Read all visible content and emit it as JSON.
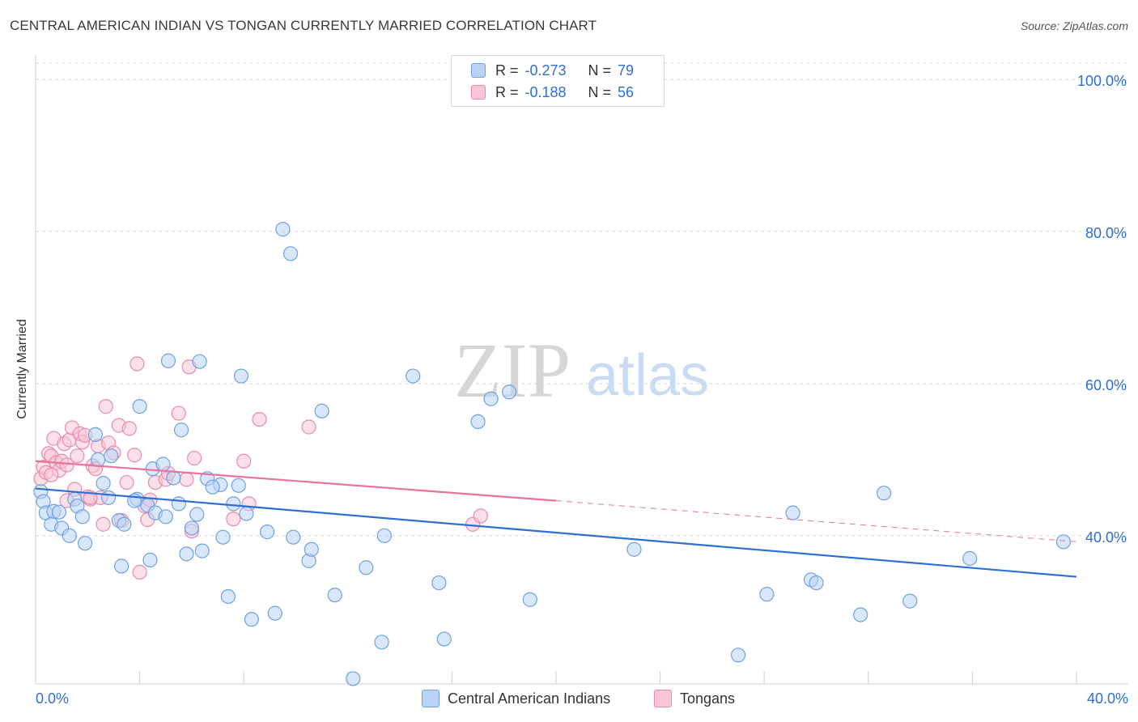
{
  "title": "CENTRAL AMERICAN INDIAN VS TONGAN CURRENTLY MARRIED CORRELATION CHART",
  "source": "Source: ZipAtlas.com",
  "watermark": {
    "zip": "ZIP",
    "atlas": "atlas"
  },
  "colors": {
    "blue": "#2e6fd1",
    "blue_fill": "#b9d3f5",
    "pink": "#e8739c",
    "pink_fill": "#f8c6d6"
  },
  "stats_legend": [
    {
      "r_label": "R =",
      "r_value": "-0.273",
      "n_label": "N =",
      "n_value": "79",
      "series": "blue"
    },
    {
      "r_label": "R =",
      "r_value": "-0.188",
      "n_label": "N =",
      "n_value": "56",
      "series": "pink"
    }
  ],
  "chart_data": {
    "type": "scatter",
    "xlabel": "",
    "ylabel": "Currently Married",
    "xlim": [
      0,
      40
    ],
    "ylim": [
      20.5,
      103
    ],
    "x_tick_labels": [
      "0.0%",
      "40.0%"
    ],
    "y_ticks": [
      40,
      60,
      80,
      100
    ],
    "y_tick_labels": [
      "40.0%",
      "60.0%",
      "80.0%",
      "100.0%"
    ],
    "x_minor_ticks": [
      0,
      4,
      8,
      12,
      16,
      20,
      24,
      28,
      32,
      36,
      40
    ],
    "series": [
      {
        "name": "Central American Indians",
        "color": "#2e6fd1",
        "trend": {
          "x": [
            0,
            40
          ],
          "y": [
            46.2,
            34.6
          ]
        },
        "points": [
          [
            0.2,
            45.8
          ],
          [
            0.3,
            44.5
          ],
          [
            0.4,
            43.0
          ],
          [
            0.6,
            41.5
          ],
          [
            0.7,
            43.2
          ],
          [
            1.0,
            41.0
          ],
          [
            1.3,
            40.0
          ],
          [
            1.5,
            44.8
          ],
          [
            1.6,
            43.9
          ],
          [
            1.8,
            42.5
          ],
          [
            1.9,
            39.0
          ],
          [
            2.3,
            53.3
          ],
          [
            2.4,
            50.0
          ],
          [
            2.6,
            46.9
          ],
          [
            2.8,
            45.0
          ],
          [
            2.9,
            50.5
          ],
          [
            3.2,
            42.0
          ],
          [
            3.4,
            41.5
          ],
          [
            3.3,
            36.0
          ],
          [
            3.9,
            44.8
          ],
          [
            4.0,
            57.0
          ],
          [
            4.3,
            44.0
          ],
          [
            4.4,
            36.8
          ],
          [
            4.5,
            48.8
          ],
          [
            4.6,
            43.0
          ],
          [
            4.9,
            49.4
          ],
          [
            5.0,
            42.5
          ],
          [
            5.1,
            63.0
          ],
          [
            5.3,
            47.6
          ],
          [
            5.5,
            44.2
          ],
          [
            5.6,
            53.9
          ],
          [
            5.8,
            37.6
          ],
          [
            6.0,
            41.0
          ],
          [
            6.2,
            42.8
          ],
          [
            6.3,
            62.9
          ],
          [
            6.4,
            38.0
          ],
          [
            6.6,
            47.5
          ],
          [
            7.1,
            46.7
          ],
          [
            7.2,
            39.8
          ],
          [
            7.4,
            32.0
          ],
          [
            7.6,
            44.2
          ],
          [
            7.8,
            46.6
          ],
          [
            7.9,
            61.0
          ],
          [
            8.1,
            42.9
          ],
          [
            8.3,
            29.0
          ],
          [
            8.9,
            40.5
          ],
          [
            9.2,
            29.8
          ],
          [
            9.5,
            80.3
          ],
          [
            9.8,
            77.1
          ],
          [
            9.9,
            39.8
          ],
          [
            10.5,
            36.7
          ],
          [
            10.6,
            38.2
          ],
          [
            11.0,
            56.4
          ],
          [
            11.5,
            32.2
          ],
          [
            12.2,
            21.2
          ],
          [
            12.7,
            35.8
          ],
          [
            13.3,
            26.0
          ],
          [
            13.4,
            40.0
          ],
          [
            14.5,
            61.0
          ],
          [
            15.5,
            33.8
          ],
          [
            15.7,
            26.4
          ],
          [
            17.0,
            55.0
          ],
          [
            17.5,
            58.0
          ],
          [
            18.2,
            58.9
          ],
          [
            19.0,
            31.6
          ],
          [
            23.0,
            38.2
          ],
          [
            27.0,
            24.3
          ],
          [
            28.1,
            32.3
          ],
          [
            29.1,
            43.0
          ],
          [
            29.8,
            34.2
          ],
          [
            30.0,
            33.8
          ],
          [
            31.7,
            29.6
          ],
          [
            32.6,
            45.6
          ],
          [
            33.6,
            31.4
          ],
          [
            35.9,
            37.0
          ],
          [
            39.5,
            39.2
          ],
          [
            0.9,
            43.1
          ],
          [
            6.8,
            46.4
          ],
          [
            3.8,
            44.6
          ]
        ]
      },
      {
        "name": "Tongans",
        "color": "#e8739c",
        "trend": {
          "x": [
            0,
            20
          ],
          "y": [
            49.8,
            44.6
          ]
        },
        "trend_ext": {
          "x": [
            20,
            40
          ],
          "y": [
            44.6,
            39.2
          ]
        },
        "points": [
          [
            0.2,
            47.5
          ],
          [
            0.3,
            49.0
          ],
          [
            0.4,
            48.3
          ],
          [
            0.5,
            50.8
          ],
          [
            0.6,
            50.5
          ],
          [
            0.7,
            52.8
          ],
          [
            0.8,
            49.6
          ],
          [
            0.9,
            48.6
          ],
          [
            1.0,
            49.8
          ],
          [
            1.1,
            52.1
          ],
          [
            1.2,
            44.6
          ],
          [
            1.3,
            52.6
          ],
          [
            1.4,
            54.2
          ],
          [
            1.5,
            46.1
          ],
          [
            1.6,
            50.5
          ],
          [
            1.7,
            53.4
          ],
          [
            1.8,
            52.3
          ],
          [
            1.9,
            53.2
          ],
          [
            2.0,
            45.1
          ],
          [
            2.1,
            44.8
          ],
          [
            2.2,
            49.2
          ],
          [
            2.3,
            48.8
          ],
          [
            2.4,
            51.8
          ],
          [
            2.5,
            45.0
          ],
          [
            2.6,
            41.5
          ],
          [
            2.7,
            57.0
          ],
          [
            2.8,
            52.2
          ],
          [
            3.0,
            50.9
          ],
          [
            3.2,
            54.5
          ],
          [
            3.3,
            42.0
          ],
          [
            3.5,
            47.0
          ],
          [
            3.6,
            54.1
          ],
          [
            3.8,
            50.6
          ],
          [
            3.9,
            62.6
          ],
          [
            4.0,
            35.2
          ],
          [
            4.2,
            43.9
          ],
          [
            4.3,
            42.1
          ],
          [
            4.4,
            44.7
          ],
          [
            4.6,
            47.0
          ],
          [
            5.0,
            47.4
          ],
          [
            5.1,
            48.2
          ],
          [
            5.5,
            56.1
          ],
          [
            5.8,
            47.4
          ],
          [
            5.9,
            62.2
          ],
          [
            6.0,
            40.6
          ],
          [
            6.1,
            50.2
          ],
          [
            7.6,
            42.2
          ],
          [
            8.0,
            49.8
          ],
          [
            8.2,
            44.2
          ],
          [
            8.6,
            55.3
          ],
          [
            10.5,
            54.3
          ],
          [
            16.8,
            41.5
          ],
          [
            17.1,
            42.6
          ],
          [
            0.6,
            48.0
          ],
          [
            1.2,
            49.3
          ],
          [
            2.1,
            45.0
          ]
        ]
      }
    ]
  },
  "bottom_legend": [
    {
      "label": "Central American Indians",
      "series": "blue"
    },
    {
      "label": "Tongans",
      "series": "pink"
    }
  ]
}
